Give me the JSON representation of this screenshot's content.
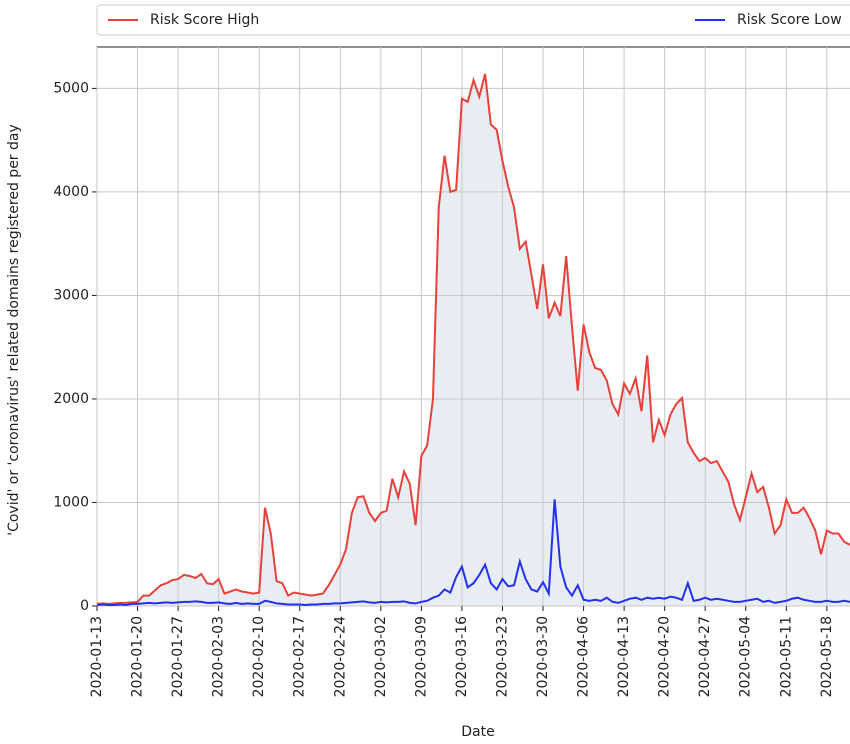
{
  "chart_data": {
    "type": "line",
    "xlabel": "Date",
    "ylabel": "'Covid' or 'coronavirus' related domains registered per day",
    "x": [
      "2020-01-13",
      "2020-01-14",
      "2020-01-15",
      "2020-01-16",
      "2020-01-17",
      "2020-01-18",
      "2020-01-19",
      "2020-01-20",
      "2020-01-21",
      "2020-01-22",
      "2020-01-23",
      "2020-01-24",
      "2020-01-25",
      "2020-01-26",
      "2020-01-27",
      "2020-01-28",
      "2020-01-29",
      "2020-01-30",
      "2020-01-31",
      "2020-02-01",
      "2020-02-02",
      "2020-02-03",
      "2020-02-04",
      "2020-02-05",
      "2020-02-06",
      "2020-02-07",
      "2020-02-08",
      "2020-02-09",
      "2020-02-10",
      "2020-02-11",
      "2020-02-12",
      "2020-02-13",
      "2020-02-14",
      "2020-02-15",
      "2020-02-16",
      "2020-02-17",
      "2020-02-18",
      "2020-02-19",
      "2020-02-20",
      "2020-02-21",
      "2020-02-22",
      "2020-02-23",
      "2020-02-24",
      "2020-02-25",
      "2020-02-26",
      "2020-02-27",
      "2020-02-28",
      "2020-02-29",
      "2020-03-01",
      "2020-03-02",
      "2020-03-03",
      "2020-03-04",
      "2020-03-05",
      "2020-03-06",
      "2020-03-07",
      "2020-03-08",
      "2020-03-09",
      "2020-03-10",
      "2020-03-11",
      "2020-03-12",
      "2020-03-13",
      "2020-03-14",
      "2020-03-15",
      "2020-03-16",
      "2020-03-17",
      "2020-03-18",
      "2020-03-19",
      "2020-03-20",
      "2020-03-21",
      "2020-03-22",
      "2020-03-23",
      "2020-03-24",
      "2020-03-25",
      "2020-03-26",
      "2020-03-27",
      "2020-03-28",
      "2020-03-29",
      "2020-03-30",
      "2020-03-31",
      "2020-04-01",
      "2020-04-02",
      "2020-04-03",
      "2020-04-04",
      "2020-04-05",
      "2020-04-06",
      "2020-04-07",
      "2020-04-08",
      "2020-04-09",
      "2020-04-10",
      "2020-04-11",
      "2020-04-12",
      "2020-04-13",
      "2020-04-14",
      "2020-04-15",
      "2020-04-16",
      "2020-04-17",
      "2020-04-18",
      "2020-04-19",
      "2020-04-20",
      "2020-04-21",
      "2020-04-22",
      "2020-04-23",
      "2020-04-24",
      "2020-04-25",
      "2020-04-26",
      "2020-04-27",
      "2020-04-28",
      "2020-04-29",
      "2020-04-30",
      "2020-05-01",
      "2020-05-02",
      "2020-05-03",
      "2020-05-04",
      "2020-05-05",
      "2020-05-06",
      "2020-05-07",
      "2020-05-08",
      "2020-05-09",
      "2020-05-10",
      "2020-05-11",
      "2020-05-12",
      "2020-05-13",
      "2020-05-14",
      "2020-05-15",
      "2020-05-16",
      "2020-05-17",
      "2020-05-18",
      "2020-05-19",
      "2020-05-20",
      "2020-05-21",
      "2020-05-22"
    ],
    "series": [
      {
        "name": "Risk Score High",
        "color": "#e8413a",
        "fill": "#e8edf3",
        "values": [
          20,
          25,
          20,
          25,
          30,
          30,
          35,
          40,
          100,
          100,
          150,
          200,
          220,
          250,
          260,
          300,
          290,
          270,
          310,
          220,
          210,
          260,
          120,
          140,
          160,
          140,
          130,
          120,
          130,
          950,
          700,
          240,
          220,
          100,
          130,
          120,
          110,
          100,
          110,
          120,
          200,
          300,
          400,
          550,
          900,
          1050,
          1060,
          900,
          820,
          900,
          920,
          1230,
          1050,
          1300,
          1180,
          780,
          1450,
          1550,
          2000,
          3850,
          4350,
          4000,
          4020,
          4900,
          4870,
          5080,
          4920,
          5140,
          4650,
          4600,
          4300,
          4050,
          3850,
          3450,
          3520,
          3200,
          2870,
          3300,
          2780,
          2930,
          2800,
          3380,
          2700,
          2080,
          2720,
          2450,
          2300,
          2280,
          2180,
          1950,
          1850,
          2150,
          2050,
          2200,
          1880,
          2420,
          1580,
          1800,
          1650,
          1850,
          1950,
          2010,
          1580,
          1480,
          1400,
          1430,
          1380,
          1400,
          1300,
          1200,
          980,
          830,
          1050,
          1280,
          1100,
          1150,
          950,
          700,
          780,
          1030,
          900,
          900,
          950,
          850,
          730,
          500,
          730,
          700,
          700,
          620,
          590
        ]
      },
      {
        "name": "Risk Score Low",
        "color": "#2430f0",
        "values": [
          10,
          15,
          10,
          10,
          15,
          10,
          20,
          20,
          25,
          30,
          25,
          30,
          35,
          30,
          35,
          40,
          40,
          45,
          40,
          30,
          30,
          35,
          25,
          20,
          30,
          20,
          25,
          20,
          20,
          50,
          40,
          25,
          20,
          15,
          15,
          15,
          10,
          15,
          15,
          20,
          20,
          25,
          25,
          30,
          35,
          40,
          45,
          35,
          30,
          40,
          35,
          40,
          40,
          45,
          30,
          25,
          40,
          50,
          80,
          100,
          160,
          130,
          280,
          380,
          180,
          220,
          300,
          400,
          220,
          160,
          260,
          190,
          200,
          430,
          260,
          160,
          140,
          230,
          120,
          1030,
          380,
          180,
          100,
          200,
          60,
          50,
          60,
          50,
          80,
          40,
          30,
          50,
          70,
          80,
          60,
          80,
          70,
          80,
          70,
          90,
          80,
          60,
          220,
          50,
          60,
          80,
          60,
          70,
          60,
          50,
          40,
          40,
          50,
          60,
          70,
          40,
          50,
          30,
          40,
          50,
          70,
          80,
          60,
          50,
          40,
          40,
          50,
          40,
          40,
          50,
          40
        ]
      }
    ],
    "xlim": [
      "2020-01-13",
      "2020-05-22"
    ],
    "xticks": [
      "2020-01-13",
      "2020-01-20",
      "2020-01-27",
      "2020-02-03",
      "2020-02-10",
      "2020-02-17",
      "2020-02-24",
      "2020-03-02",
      "2020-03-09",
      "2020-03-16",
      "2020-03-23",
      "2020-03-30",
      "2020-04-06",
      "2020-04-13",
      "2020-04-20",
      "2020-04-27",
      "2020-05-04",
      "2020-05-11",
      "2020-05-18"
    ],
    "ylim": [
      0,
      5400
    ],
    "yticks": [
      0,
      1000,
      2000,
      3000,
      4000,
      5000
    ],
    "grid": true,
    "legend": "top"
  }
}
